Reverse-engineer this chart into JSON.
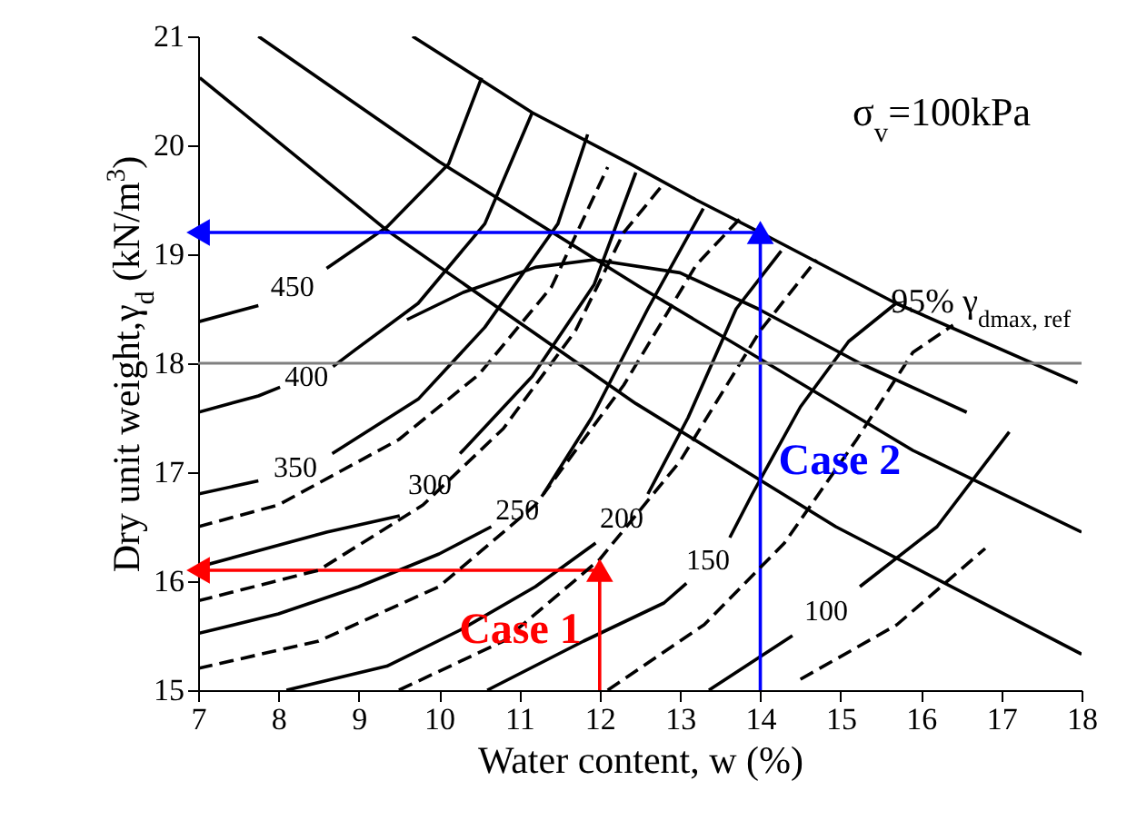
{
  "chart_data": {
    "type": "line",
    "xlabel": "Water content, w (%)",
    "ylabel": "Dry unit weight,γ$_{d}$ (kN/m$^{3}$)",
    "xlim": [
      7,
      18
    ],
    "ylim": [
      15,
      21
    ],
    "xticks": [
      7,
      8,
      9,
      10,
      11,
      12,
      13,
      14,
      15,
      16,
      17,
      18
    ],
    "yticks": [
      15,
      16,
      17,
      18,
      19,
      20,
      21
    ],
    "series": [
      {
        "color": "#000000",
        "x": [
          9.67,
          10.48,
          11.16,
          12.38,
          13.2,
          14,
          15.69,
          17.95
        ],
        "values": [
          21,
          20.62,
          20.3,
          19.83,
          19.5,
          19.2,
          18.55,
          17.82
        ]
      },
      {
        "color": "#000000",
        "x": [
          9.6,
          10.3,
          11.2,
          11.93,
          13.0,
          13.97,
          15.24,
          16.57
        ],
        "values": [
          18.4,
          18.65,
          18.88,
          18.95,
          18.83,
          18.5,
          18.0,
          17.55
        ]
      },
      {
        "color": "#000000",
        "x": [
          7.75,
          10,
          12.5,
          15.9,
          18
        ],
        "values": [
          21,
          19.85,
          18.7,
          17.2,
          16.45
        ]
      },
      {
        "color": "#000000",
        "x": [
          7.02,
          9.35,
          12.45,
          14.94,
          18
        ],
        "values": [
          20.62,
          19.22,
          17.63,
          16.5,
          15.33
        ]
      },
      {
        "name": "450",
        "color": "#000000",
        "x": [
          7,
          7.75,
          8.2,
          8.6,
          9.35,
          10.12,
          10.53
        ],
        "values": [
          18.38,
          18.53,
          null,
          18.87,
          19.25,
          19.83,
          20.62
        ]
      },
      {
        "name": "400",
        "color": "#000000",
        "x": [
          7,
          7.75,
          8.02,
          8.35,
          8.68,
          8.95,
          9.74,
          10.57,
          11.16
        ],
        "values": [
          17.55,
          17.7,
          17.78,
          null,
          17.97,
          18.12,
          18.55,
          19.28,
          20.3
        ]
      },
      {
        "name": "350",
        "color": "#000000",
        "x": [
          7,
          7.75,
          8.2,
          8.67,
          9.74,
          10.57,
          11.48,
          11.85
        ],
        "values": [
          16.8,
          16.92,
          null,
          17.17,
          17.67,
          18.33,
          19.28,
          20.1
        ]
      },
      {
        "name": "300",
        "color": "#000000",
        "x": [
          7,
          8.6,
          9.51,
          9.85,
          10.26,
          11.16,
          11.93,
          12.45
        ],
        "values": [
          16.13,
          16.45,
          16.6,
          null,
          17.17,
          17.88,
          18.72,
          19.75
        ]
      },
      {
        "name": "250",
        "color": "#000000",
        "x": [
          7,
          8,
          9,
          10,
          10.65,
          10.98,
          11.3,
          11.9,
          12.6,
          13.29
        ],
        "values": [
          15.52,
          15.7,
          15.95,
          16.25,
          16.5,
          null,
          16.8,
          17.5,
          18.5,
          19.42
        ]
      },
      {
        "name": "200",
        "color": "#000000",
        "x": [
          8.1,
          9.35,
          10.26,
          11.2,
          11.95,
          12.29,
          12.6,
          13.1,
          13.7,
          14.26
        ],
        "values": [
          15,
          15.22,
          15.55,
          15.95,
          16.35,
          null,
          16.8,
          17.5,
          18.5,
          19.03
        ]
      },
      {
        "name": "150",
        "color": "#000000",
        "x": [
          10.6,
          11.8,
          12.8,
          13.08,
          13.36,
          13.62,
          13.9,
          14.5,
          15.1,
          15.69
        ],
        "values": [
          15,
          15.45,
          15.8,
          15.98,
          null,
          16.4,
          16.8,
          17.6,
          18.2,
          18.55
        ]
      },
      {
        "name": "100",
        "color": "#000000",
        "x": [
          13.36,
          14.4,
          14.8,
          15.24,
          16.2,
          17.1
        ],
        "values": [
          15,
          15.5,
          null,
          15.95,
          16.5,
          17.37
        ]
      },
      {
        "color": "#000000",
        "line_style": "dashed",
        "x": [
          7,
          8,
          9.5,
          10.5,
          11.4,
          12.1
        ],
        "values": [
          16.5,
          16.7,
          17.3,
          17.9,
          18.7,
          19.8
        ]
      },
      {
        "color": "#000000",
        "line_style": "dashed",
        "x": [
          7,
          8.5,
          9.8,
          10.8,
          11.7,
          12.3,
          12.8
        ],
        "values": [
          15.82,
          16.1,
          16.7,
          17.4,
          18.3,
          19.2,
          19.65
        ]
      },
      {
        "color": "#000000",
        "line_style": "dashed",
        "x": [
          7,
          8.5,
          10,
          11.2,
          12.3,
          13.2,
          13.75
        ],
        "values": [
          15.2,
          15.45,
          15.95,
          16.7,
          17.8,
          18.9,
          19.33
        ]
      },
      {
        "color": "#000000",
        "line_style": "dashed",
        "x": [
          9.5,
          10.8,
          12,
          13,
          14,
          14.7
        ],
        "values": [
          15,
          15.45,
          16.2,
          17.1,
          18.3,
          18.95
        ]
      },
      {
        "color": "#000000",
        "line_style": "dashed",
        "x": [
          12.1,
          13.3,
          14.3,
          15.2,
          15.9,
          16.4
        ],
        "values": [
          15,
          15.6,
          16.35,
          17.3,
          18.1,
          18.35
        ]
      },
      {
        "color": "#000000",
        "line_style": "dashed",
        "x": [
          14.5,
          15.7,
          16.8
        ],
        "values": [
          15.1,
          15.6,
          16.3
        ]
      },
      {
        "name": "Case 1",
        "color": "#ff0000",
        "x": [
          12,
          12,
          7
        ],
        "values": [
          15,
          16.1,
          16.1
        ]
      },
      {
        "name": "Case 2",
        "color": "#0000ff",
        "x": [
          14,
          14,
          7
        ],
        "values": [
          15,
          19.2,
          19.2
        ]
      }
    ],
    "ref_lines": [
      {
        "axis": "y",
        "value": 18,
        "label": "95% γ$_{dmax, ref}$",
        "color": "#808080"
      }
    ],
    "annotations": [
      "σ$_{v}$=100kPa"
    ]
  }
}
